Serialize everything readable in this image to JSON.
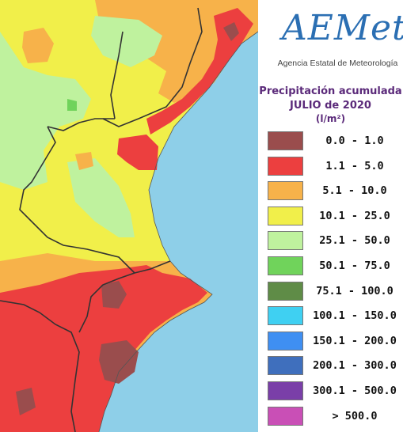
{
  "map": {
    "colors": {
      "sea": "#8ecfe8",
      "land_outside": "#e6d9bf",
      "c_0_1": "#9a4d4d",
      "c_1_5": "#ec3f3f",
      "c_5_10": "#f7b24a",
      "c_10_25": "#f1ef4a",
      "c_25_50": "#bff29e",
      "c_50_75": "#70d35b",
      "border": "#333333"
    }
  },
  "logo": {
    "wordmark": "AEMet",
    "subtitle": "Agencia Estatal de Meteorología"
  },
  "title": {
    "line1": "Precipitación acumulada",
    "line2": "JULIO de 2020",
    "line3": "(l/m²)"
  },
  "legend": [
    {
      "range": "0.0 - 1.0",
      "color": "#9a4d4d"
    },
    {
      "range": "1.1 - 5.0",
      "color": "#ec3f3f"
    },
    {
      "range": "5.1 - 10.0",
      "color": "#f7b24a"
    },
    {
      "range": "10.1 - 25.0",
      "color": "#f1ef4a"
    },
    {
      "range": "25.1 - 50.0",
      "color": "#bff29e"
    },
    {
      "range": "50.1 - 75.0",
      "color": "#70d35b"
    },
    {
      "range": "75.1 - 100.0",
      "color": "#5f8c47"
    },
    {
      "range": "100.1 - 150.0",
      "color": "#3fd0f2"
    },
    {
      "range": "150.1 - 200.0",
      "color": "#3f8ff2"
    },
    {
      "range": "200.1 - 300.0",
      "color": "#3f6fbd"
    },
    {
      "range": "300.1 - 500.0",
      "color": "#7a3fa8"
    },
    {
      "range": "> 500.0",
      "color": "#c94fb6"
    }
  ]
}
